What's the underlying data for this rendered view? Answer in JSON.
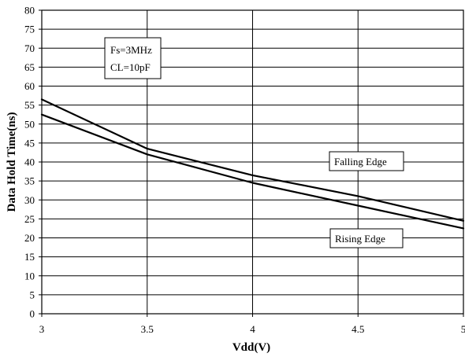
{
  "chart_data": {
    "type": "line",
    "xlabel": "Vdd(V)",
    "ylabel": "Data Hold Time(ns)",
    "xlim": [
      3,
      5
    ],
    "ylim": [
      0,
      80
    ],
    "x_ticks": [
      "3",
      "3.5",
      "4",
      "4.5",
      "5"
    ],
    "y_ticks": [
      "0",
      "5",
      "10",
      "15",
      "20",
      "25",
      "30",
      "35",
      "40",
      "45",
      "50",
      "55",
      "60",
      "65",
      "70",
      "75",
      "80"
    ],
    "grid": true,
    "series": [
      {
        "name": "Falling Edge",
        "color": "#000000",
        "x": [
          3,
          3.5,
          4,
          4.5,
          5
        ],
        "values": [
          56.5,
          43.5,
          36.5,
          31,
          24.5
        ]
      },
      {
        "name": "Rising Edge",
        "color": "#000000",
        "x": [
          3,
          3.5,
          4,
          4.5,
          5
        ],
        "values": [
          52.5,
          42,
          34.5,
          28.5,
          22.5
        ]
      }
    ],
    "annotations": {
      "conditions_line1": "Fs=3MHz",
      "conditions_line2": "CL=10pF"
    }
  }
}
